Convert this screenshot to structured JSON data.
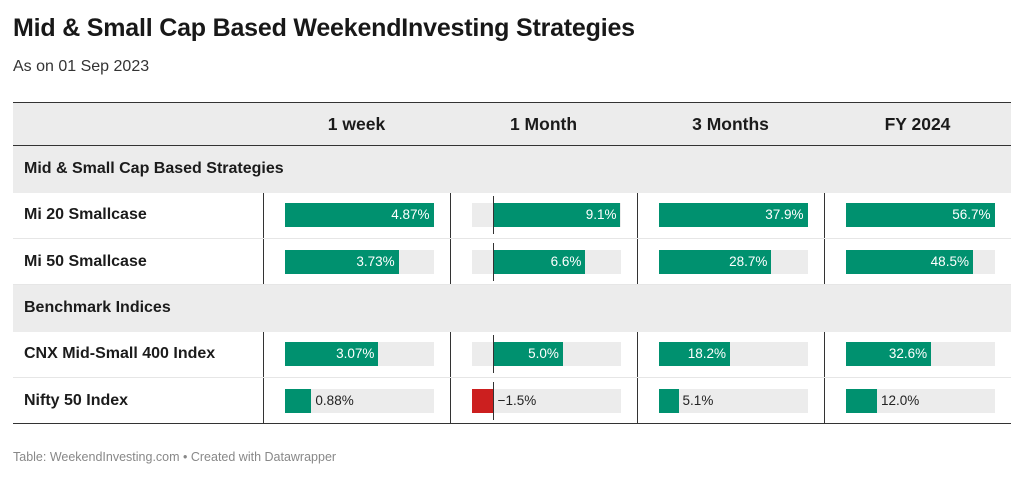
{
  "title": "Mid & Small Cap Based WeekendInvesting Strategies",
  "subtitle": "As on 01 Sep 2023",
  "footer": "Table: WeekendInvesting.com • Created with Datawrapper",
  "colors": {
    "positive": "#00916f",
    "negative": "#cc1f1f",
    "track": "#ececec"
  },
  "chart_data": {
    "type": "table",
    "columns": [
      "",
      "1 week",
      "1 Month",
      "3 Months",
      "FY 2024"
    ],
    "unit": "%",
    "column_ranges": [
      [
        0,
        4.87
      ],
      [
        -1.5,
        9.1
      ],
      [
        0,
        37.9
      ],
      [
        0,
        56.7
      ]
    ],
    "sections": [
      {
        "label": "Mid & Small Cap Based Strategies",
        "rows": [
          {
            "name": "Mi 20 Smallcase",
            "values": [
              4.87,
              9.1,
              37.9,
              56.7
            ],
            "labels": [
              "4.87%",
              "9.1%",
              "37.9%",
              "56.7%"
            ]
          },
          {
            "name": "Mi 50 Smallcase",
            "values": [
              3.73,
              6.6,
              28.7,
              48.5
            ],
            "labels": [
              "3.73%",
              "6.6%",
              "28.7%",
              "48.5%"
            ]
          }
        ]
      },
      {
        "label": "Benchmark Indices",
        "rows": [
          {
            "name": "CNX Mid-Small 400 Index",
            "values": [
              3.07,
              5.0,
              18.2,
              32.6
            ],
            "labels": [
              "3.07%",
              "5.0%",
              "18.2%",
              "32.6%"
            ]
          },
          {
            "name": "Nifty 50 Index",
            "values": [
              0.88,
              -1.5,
              5.1,
              12.0
            ],
            "labels": [
              "0.88%",
              "−1.5%",
              "5.1%",
              "12.0%"
            ]
          }
        ]
      }
    ]
  }
}
